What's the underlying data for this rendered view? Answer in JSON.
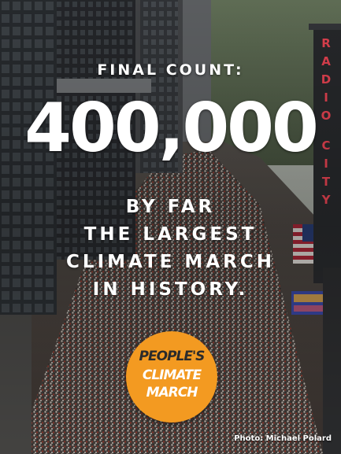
{
  "headline": {
    "kicker": "FINAL COUNT:",
    "count": "400,000",
    "lines": [
      "BY FAR",
      "THE LARGEST",
      "CLIMATE MARCH",
      "IN HISTORY."
    ]
  },
  "badge": {
    "line1": "PEOPLE'S",
    "line2": "CLIMATE",
    "line3": "MARCH",
    "color": "#f39a21"
  },
  "sign": {
    "letters": [
      "R",
      "A",
      "D",
      "I",
      "O",
      "C",
      "I",
      "T",
      "Y"
    ],
    "color": "#ff4a5a"
  },
  "credit": "Photo: Michael Polard"
}
